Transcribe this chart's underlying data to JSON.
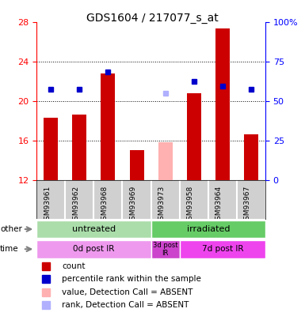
{
  "title": "GDS1604 / 217077_s_at",
  "samples": [
    "GSM93961",
    "GSM93962",
    "GSM93968",
    "GSM93969",
    "GSM93973",
    "GSM93958",
    "GSM93964",
    "GSM93967"
  ],
  "bar_values": [
    18.3,
    18.6,
    22.8,
    15.0,
    null,
    20.8,
    27.4,
    16.6
  ],
  "absent_bar_values": [
    null,
    null,
    null,
    null,
    15.8,
    null,
    null,
    null
  ],
  "rank_values": [
    21.2,
    21.2,
    23.0,
    null,
    null,
    22.0,
    21.5,
    21.2
  ],
  "absent_rank_values": [
    null,
    null,
    null,
    null,
    20.8,
    null,
    null,
    null
  ],
  "ylim_left": [
    12,
    28
  ],
  "ylim_right": [
    0,
    100
  ],
  "yticks_left": [
    12,
    16,
    20,
    24,
    28
  ],
  "yticks_right": [
    0,
    25,
    50,
    75,
    100
  ],
  "ytick_labels_right": [
    "0",
    "25",
    "50",
    "75",
    "100%"
  ],
  "bar_color": "#cc0000",
  "absent_bar_color": "#ffb0b0",
  "rank_color": "#0000cc",
  "absent_rank_color": "#b0b0ff",
  "grid_color": "#000000",
  "sample_bg_color": "#d0d0d0",
  "untreated_color": "#90ee90",
  "irradiated_color": "#44cc44",
  "time_0d_color": "#ff99ff",
  "time_3d_color": "#dd44dd",
  "time_7d_color": "#ff44ff",
  "other_label": "other",
  "time_label": "time",
  "groups_other": [
    {
      "label": "untreated",
      "start": 0,
      "end": 4,
      "color": "#aaddaa"
    },
    {
      "label": "irradiated",
      "start": 4,
      "end": 8,
      "color": "#66cc66"
    }
  ],
  "groups_time": [
    {
      "label": "0d post IR",
      "start": 0,
      "end": 4,
      "color": "#ee99ee"
    },
    {
      "label": "3d post\nIR",
      "start": 4,
      "end": 5,
      "color": "#cc44cc"
    },
    {
      "label": "7d post IR",
      "start": 5,
      "end": 8,
      "color": "#ee44ee"
    }
  ],
  "legend_items": [
    {
      "label": "count",
      "color": "#cc0000",
      "marker": "s"
    },
    {
      "label": "percentile rank within the sample",
      "color": "#0000cc",
      "marker": "s"
    },
    {
      "label": "value, Detection Call = ABSENT",
      "color": "#ffb0b0",
      "marker": "s"
    },
    {
      "label": "rank, Detection Call = ABSENT",
      "color": "#b0b0ff",
      "marker": "s"
    }
  ]
}
